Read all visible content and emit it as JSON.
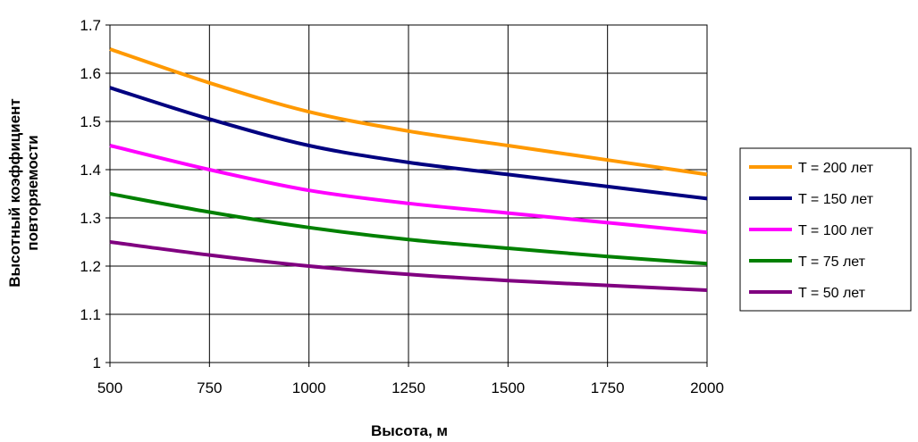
{
  "chart_data": {
    "type": "line",
    "title": "",
    "xlabel": "Высота, м",
    "ylabel": [
      "Высотный коэффициент",
      "повторяемости"
    ],
    "xlim": [
      500,
      2000
    ],
    "ylim": [
      1,
      1.7
    ],
    "x_ticks": [
      "500",
      "750",
      "1000",
      "1250",
      "1500",
      "1750",
      "2000"
    ],
    "y_ticks": [
      "1",
      "1.1",
      "1.2",
      "1.3",
      "1.4",
      "1.5",
      "1.6",
      "1.7"
    ],
    "grid": true,
    "legend_position": "right",
    "x": [
      500,
      750,
      1000,
      1250,
      1500,
      1750,
      2000
    ],
    "series": [
      {
        "name": "T = 200 лет",
        "color": "#FF9900",
        "values": [
          1.65,
          1.58,
          1.52,
          1.48,
          1.45,
          1.42,
          1.39
        ]
      },
      {
        "name": "T = 150 лет",
        "color": "#000080",
        "values": [
          1.57,
          1.505,
          1.45,
          1.415,
          1.39,
          1.365,
          1.34
        ]
      },
      {
        "name": "T = 100 лет",
        "color": "#FF00FF",
        "values": [
          1.45,
          1.4,
          1.357,
          1.33,
          1.31,
          1.29,
          1.27
        ]
      },
      {
        "name": "T = 75 лет",
        "color": "#008000",
        "values": [
          1.35,
          1.312,
          1.28,
          1.255,
          1.237,
          1.22,
          1.205
        ]
      },
      {
        "name": "T = 50 лет",
        "color": "#800080",
        "values": [
          1.25,
          1.223,
          1.2,
          1.183,
          1.17,
          1.16,
          1.15
        ]
      }
    ]
  }
}
